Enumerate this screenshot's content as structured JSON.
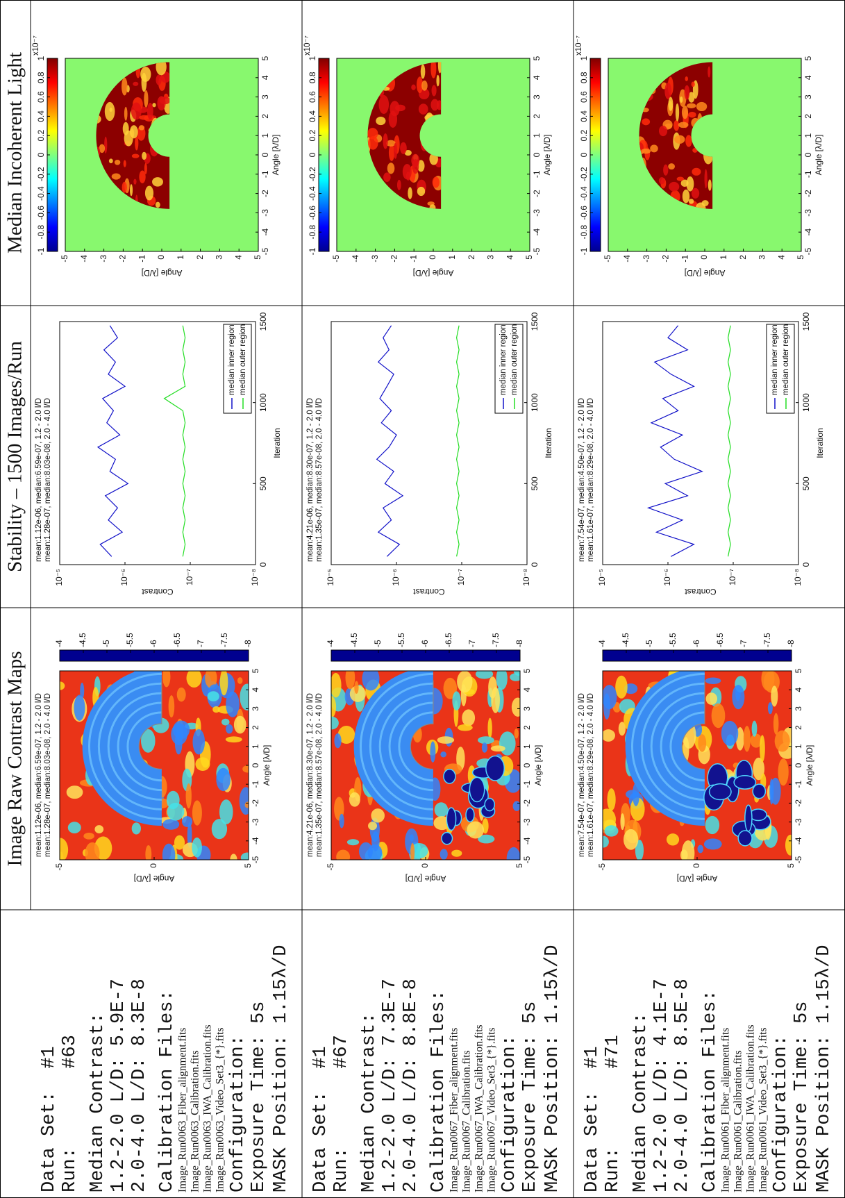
{
  "headers": [
    "Image Raw Contrast Maps",
    "Stability – 1500 Images/Run",
    "Median Incoherent Light"
  ],
  "axes": {
    "raw": {
      "xlim": [
        -5,
        5
      ],
      "ylim": [
        -5,
        5
      ],
      "xticks": [
        -5,
        -4,
        -3,
        -2,
        -1,
        0,
        1,
        2,
        3,
        4,
        5
      ],
      "yticks": [
        -5,
        0,
        5
      ],
      "xlabel": "Angle [λ/D]",
      "ylabel": "Angle [λ/D]",
      "colorbar": {
        "lim": [
          -8,
          -4
        ],
        "ticks": [
          -4,
          -4.5,
          -5,
          -5.5,
          -6,
          -6.5,
          -7,
          -7.5,
          -8
        ]
      }
    },
    "stability": {
      "type": "line",
      "log_y": true,
      "xlim": [
        0,
        1500
      ],
      "ylim": [
        1e-08,
        1e-05
      ],
      "xticks": [
        0,
        500,
        1000,
        1500
      ],
      "yticks": [
        {
          "value": 1e-08,
          "label": "10⁻⁸"
        },
        {
          "value": 1e-07,
          "label": "10⁻⁷"
        },
        {
          "value": 1e-06,
          "label": "10⁻⁶"
        },
        {
          "value": 1e-05,
          "label": "10⁻⁵"
        }
      ],
      "xlabel": "Iteration",
      "ylabel": "Contrast",
      "x": [
        50,
        125,
        200,
        275,
        350,
        425,
        500,
        575,
        650,
        725,
        800,
        875,
        950,
        1025,
        1100,
        1175,
        1250,
        1325,
        1400,
        1475
      ]
    },
    "incoherent": {
      "xlim": [
        -5,
        5
      ],
      "ylim": [
        -5,
        5
      ],
      "xticks": [
        -5,
        -4,
        -3,
        -2,
        -1,
        0,
        1,
        2,
        3,
        4,
        5
      ],
      "yticks": [
        -5,
        -4,
        -3,
        -2,
        -1,
        0,
        1,
        2,
        3,
        4,
        5
      ],
      "xlabel": "Angle [λ/D]",
      "ylabel": "Angle [λ/D]",
      "colorbar": {
        "lim": [
          -1,
          1
        ],
        "ticks": [
          1,
          0.8,
          0.6,
          0.4,
          0.2,
          0,
          -0.2,
          -0.4,
          -0.6,
          -0.8,
          -1
        ],
        "multiplier": "x10⁻⁷"
      }
    }
  },
  "rows": [
    {
      "info": {
        "data_set": "Data Set:  #1",
        "run": "Run:       #63",
        "median_contrast": "Median Contrast:",
        "inner": "1.2-2.0 L/D: 5.9E-7",
        "outer": "2.0-4.0 L/D: 8.3E-8",
        "calibration": "Calibration Files:",
        "files": [
          "Image_Run0063_Fiber_alignment.fits",
          "Image_Run0063_Calibration.fits",
          "Image_Run0063_IWA_Calibration.fits",
          "Image_Run0063_Video_Set3_{*}.fits"
        ],
        "configuration": "Configuration:",
        "exposure": "Exposure Time: 5s",
        "mask": "MASK Position: 1.15λ/D"
      },
      "annotation": [
        "mean:1.12e-06, median:6.59e-07, 1.2 - 2.0 l/D",
        "mean:1.28e-07, median:8.03e-08, 2.0 - 4.0 l/D"
      ],
      "series": [
        {
          "name": "median inner region",
          "color": "#1010c8",
          "values": [
            1.6e-06,
            2.4e-06,
            1.1e-06,
            1.8e-06,
            1.3e-06,
            2e-06,
            9e-07,
            1.7e-06,
            1.4e-06,
            2.6e-06,
            1.2e-06,
            1.9e-06,
            1.5e-06,
            2.2e-06,
            1e-06,
            1.8e-06,
            1.4e-06,
            2.1e-06,
            1.3e-06,
            1.7e-06
          ]
        },
        {
          "name": "median outer region",
          "color": "#22dd22",
          "values": [
            1.3e-07,
            1.2e-07,
            1.3e-07,
            1.2e-07,
            1.3e-07,
            1.2e-07,
            1.3e-07,
            1.2e-07,
            1.3e-07,
            1.2e-07,
            1.3e-07,
            1.2e-07,
            1.3e-07,
            2.5e-07,
            1.2e-07,
            1.3e-07,
            1.2e-07,
            1.3e-07,
            1.2e-07,
            1.3e-07
          ]
        }
      ]
    },
    {
      "info": {
        "data_set": "Data Set:  #1",
        "run": "Run:       #67",
        "median_contrast": "Median Contrast:",
        "inner": "1.2-2.0 L/D: 7.3E-7",
        "outer": "2.0-4.0 L/D: 8.8E-8",
        "calibration": "Calibration Files:",
        "files": [
          "Image_Run0067_Fiber_alignment.fits",
          "Image_Run0067_Calibration.fits",
          "Image_Run0067_IWA_Calibration.fits",
          "Image_Run0067_Video_Set3_{*}.fits"
        ],
        "configuration": "Configuration:",
        "exposure": "Exposure Time: 5s",
        "mask": "MASK Position: 1.15λ/D"
      },
      "annotation": [
        "mean:4.21e-06, median:8.30e-07, 1.2 - 2.0 l/D",
        "mean:1.35e-07, median:8.57e-08, 2.0 - 4.0 l/D"
      ],
      "series": [
        {
          "name": "median inner region",
          "color": "#1010c8",
          "values": [
            1.4e-06,
            9e-07,
            1.9e-06,
            1.2e-06,
            1.6e-06,
            8e-07,
            1.5e-06,
            1.1e-06,
            2e-06,
            1.3e-06,
            1e-06,
            1.7e-06,
            1.2e-06,
            1.8e-06,
            1.4e-06,
            1.1e-06,
            1.9e-06,
            1.3e-06,
            1.6e-06,
            1.2e-06
          ]
        },
        {
          "name": "median outer region",
          "color": "#22dd22",
          "values": [
            1.2e-07,
            1.1e-07,
            1.2e-07,
            1.1e-07,
            1.2e-07,
            1.1e-07,
            1.2e-07,
            1.1e-07,
            1.2e-07,
            1.1e-07,
            1.2e-07,
            1.1e-07,
            1.2e-07,
            1.1e-07,
            1.2e-07,
            1.1e-07,
            1.2e-07,
            1.1e-07,
            1.2e-07,
            1.1e-07
          ]
        }
      ]
    },
    {
      "info": {
        "data_set": "Data Set:  #1",
        "run": "Run:       #71",
        "median_contrast": "Median Contrast:",
        "inner": "1.2-2.0 L/D: 4.1E-7",
        "outer": "2.0-4.0 L/D: 8.5E-8",
        "calibration": "Calibration Files:",
        "files": [
          "Image_Run0061_Fiber_alignment.fits",
          "Image_Run0061_Calibration.fits",
          "Image_Run0061_IWA_Calibration.fits",
          "Image_Run0061_Video_Set3_{*}.fits"
        ],
        "configuration": "Configuration:",
        "exposure": "Exposure Time: 5s",
        "mask": "MASK Position: 1.15λ/D"
      },
      "annotation": [
        "mean:7.54e-07, median:4.50e-07, 1.2 - 2.0 l/D",
        "mean:1.61e-07, median:8.29e-08, 2.0 - 4.0 l/D"
      ],
      "series": [
        {
          "name": "median inner region",
          "color": "#1010c8",
          "values": [
            9e-07,
            4e-07,
            1.5e-06,
            6e-07,
            2e-06,
            5e-07,
            1.1e-06,
            3e-07,
            8e-07,
            1.3e-06,
            6e-07,
            1.8e-06,
            7e-07,
            1.2e-06,
            4e-07,
            9e-07,
            1.6e-06,
            5e-07,
            1e-06,
            7e-07
          ]
        },
        {
          "name": "median outer region",
          "color": "#22dd22",
          "values": [
            1.2e-07,
            1.1e-07,
            1.2e-07,
            1.1e-07,
            1.2e-07,
            1.1e-07,
            1.2e-07,
            1.1e-07,
            1.2e-07,
            1.1e-07,
            1.2e-07,
            1.1e-07,
            1.2e-07,
            1.1e-07,
            1.2e-07,
            1.1e-07,
            1.2e-07,
            1.1e-07,
            1.2e-07,
            1.1e-07
          ]
        }
      ]
    }
  ]
}
